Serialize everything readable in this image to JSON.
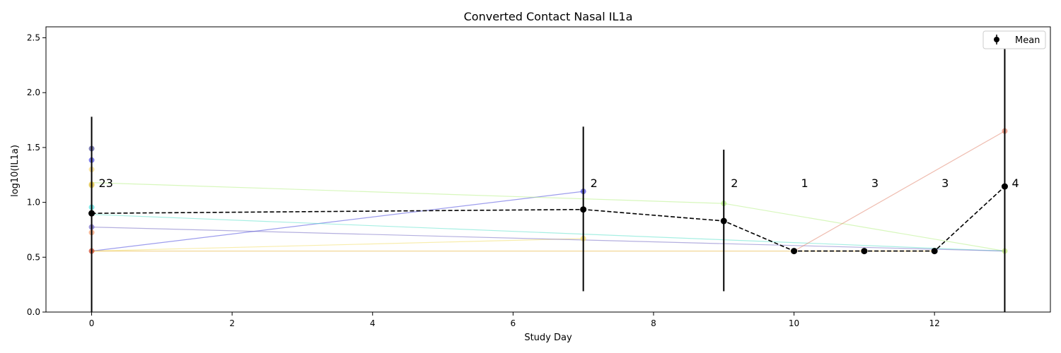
{
  "chart_data": {
    "type": "line",
    "title": "Converted Contact Nasal IL1a",
    "xlabel": "Study Day",
    "ylabel": "log10(IL1a)",
    "xlim": [
      -0.65,
      13.65
    ],
    "ylim": [
      0,
      2.6
    ],
    "xticks": [
      0,
      2,
      4,
      6,
      8,
      10,
      12
    ],
    "yticks": [
      0.0,
      0.5,
      1.0,
      1.5,
      2.0,
      2.5
    ],
    "grid": false,
    "legend": {
      "position": "top-right",
      "entries": [
        "Mean"
      ]
    },
    "individual_series": [
      {
        "color": "#3c3cdc",
        "x": [
          0,
          7
        ],
        "y": [
          0.556,
          1.1
        ]
      },
      {
        "color": "#f2dc5a",
        "x": [
          0,
          7
        ],
        "y": [
          0.556,
          0.67
        ]
      },
      {
        "color": "#b0f07a",
        "x": [
          0,
          9
        ],
        "y": [
          1.18,
          0.99
        ]
      },
      {
        "color": "#b0f07a",
        "x": [
          9,
          13
        ],
        "y": [
          0.99,
          0.556
        ]
      },
      {
        "color": "#50e0c8",
        "x": [
          0,
          13
        ],
        "y": [
          0.89,
          0.556
        ]
      },
      {
        "color": "#6a5fc0",
        "x": [
          0,
          13
        ],
        "y": [
          0.775,
          0.556
        ]
      },
      {
        "color": "#e07a60",
        "x": [
          10,
          13
        ],
        "y": [
          0.556,
          1.65
        ]
      },
      {
        "color": "#e8b030",
        "x": [
          0,
          12
        ],
        "y": [
          0.556,
          0.556
        ]
      }
    ],
    "baseline_points": [
      {
        "x": 0,
        "y": 1.49,
        "color": "#3a3a8a"
      },
      {
        "x": 0,
        "y": 1.385,
        "color": "#3c3cdc"
      },
      {
        "x": 0,
        "y": 1.3,
        "color": "#f0d070"
      },
      {
        "x": 0,
        "y": 1.165,
        "color": "#e8c040"
      },
      {
        "x": 0,
        "y": 1.155,
        "color": "#d8c048"
      },
      {
        "x": 0,
        "y": 0.955,
        "color": "#40d8d8"
      },
      {
        "x": 0,
        "y": 0.775,
        "color": "#6a5fc0"
      },
      {
        "x": 0,
        "y": 0.725,
        "color": "#f09060"
      },
      {
        "x": 0,
        "y": 0.556,
        "color": "#c83010"
      },
      {
        "x": 7,
        "y": 1.1,
        "color": "#3c3cdc"
      },
      {
        "x": 7,
        "y": 0.67,
        "color": "#f2dc5a"
      },
      {
        "x": 9,
        "y": 0.99,
        "color": "#b0f07a"
      },
      {
        "x": 13,
        "y": 1.65,
        "color": "#e07a60"
      },
      {
        "x": 13,
        "y": 0.556,
        "color": "#c0e870"
      }
    ],
    "mean": {
      "name": "Mean",
      "x": [
        0,
        7,
        9,
        10,
        11,
        12,
        13
      ],
      "y": [
        0.9,
        0.935,
        0.83,
        0.556,
        0.556,
        0.556,
        1.145
      ],
      "yerr_low": [
        0.0,
        0.19,
        0.19,
        0.556,
        0.556,
        0.556,
        0.0
      ],
      "yerr_high": [
        1.78,
        1.69,
        1.48,
        0.556,
        0.556,
        0.556,
        2.45
      ]
    },
    "counts": [
      {
        "x": 0,
        "label": "23"
      },
      {
        "x": 7,
        "label": "2"
      },
      {
        "x": 9,
        "label": "2"
      },
      {
        "x": 10,
        "label": "1"
      },
      {
        "x": 11,
        "label": "3"
      },
      {
        "x": 12,
        "label": "3"
      },
      {
        "x": 13,
        "label": "4"
      }
    ],
    "counts_y": 1.17
  }
}
